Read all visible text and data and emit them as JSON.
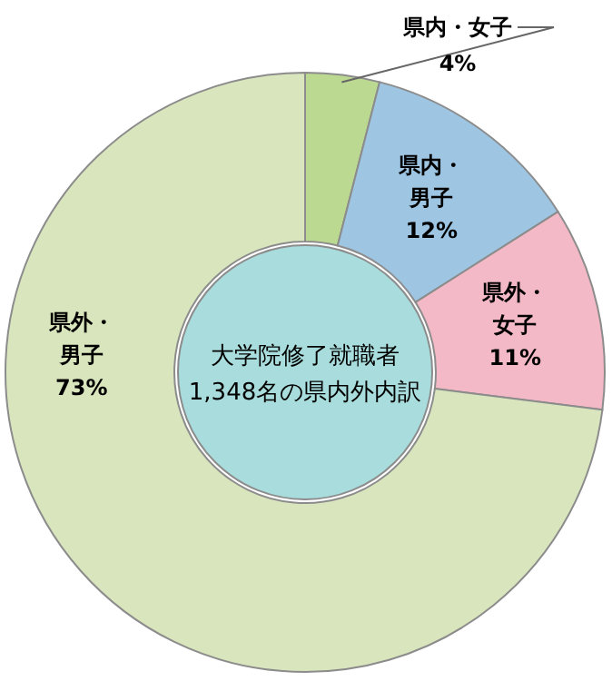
{
  "chart_data": {
    "type": "donut",
    "title": "大学院修了就職者 1,348名の県内外内訳",
    "categories": [
      "県内・女子",
      "県内・男子",
      "県外・女子",
      "県外・男子"
    ],
    "values": [
      4,
      12,
      11,
      73
    ],
    "value_labels": [
      "4%",
      "12%",
      "11%",
      "73%"
    ],
    "colors": [
      "#bcd992",
      "#9ec5e2",
      "#f4b9c6",
      "#d9e6bd"
    ]
  }
}
